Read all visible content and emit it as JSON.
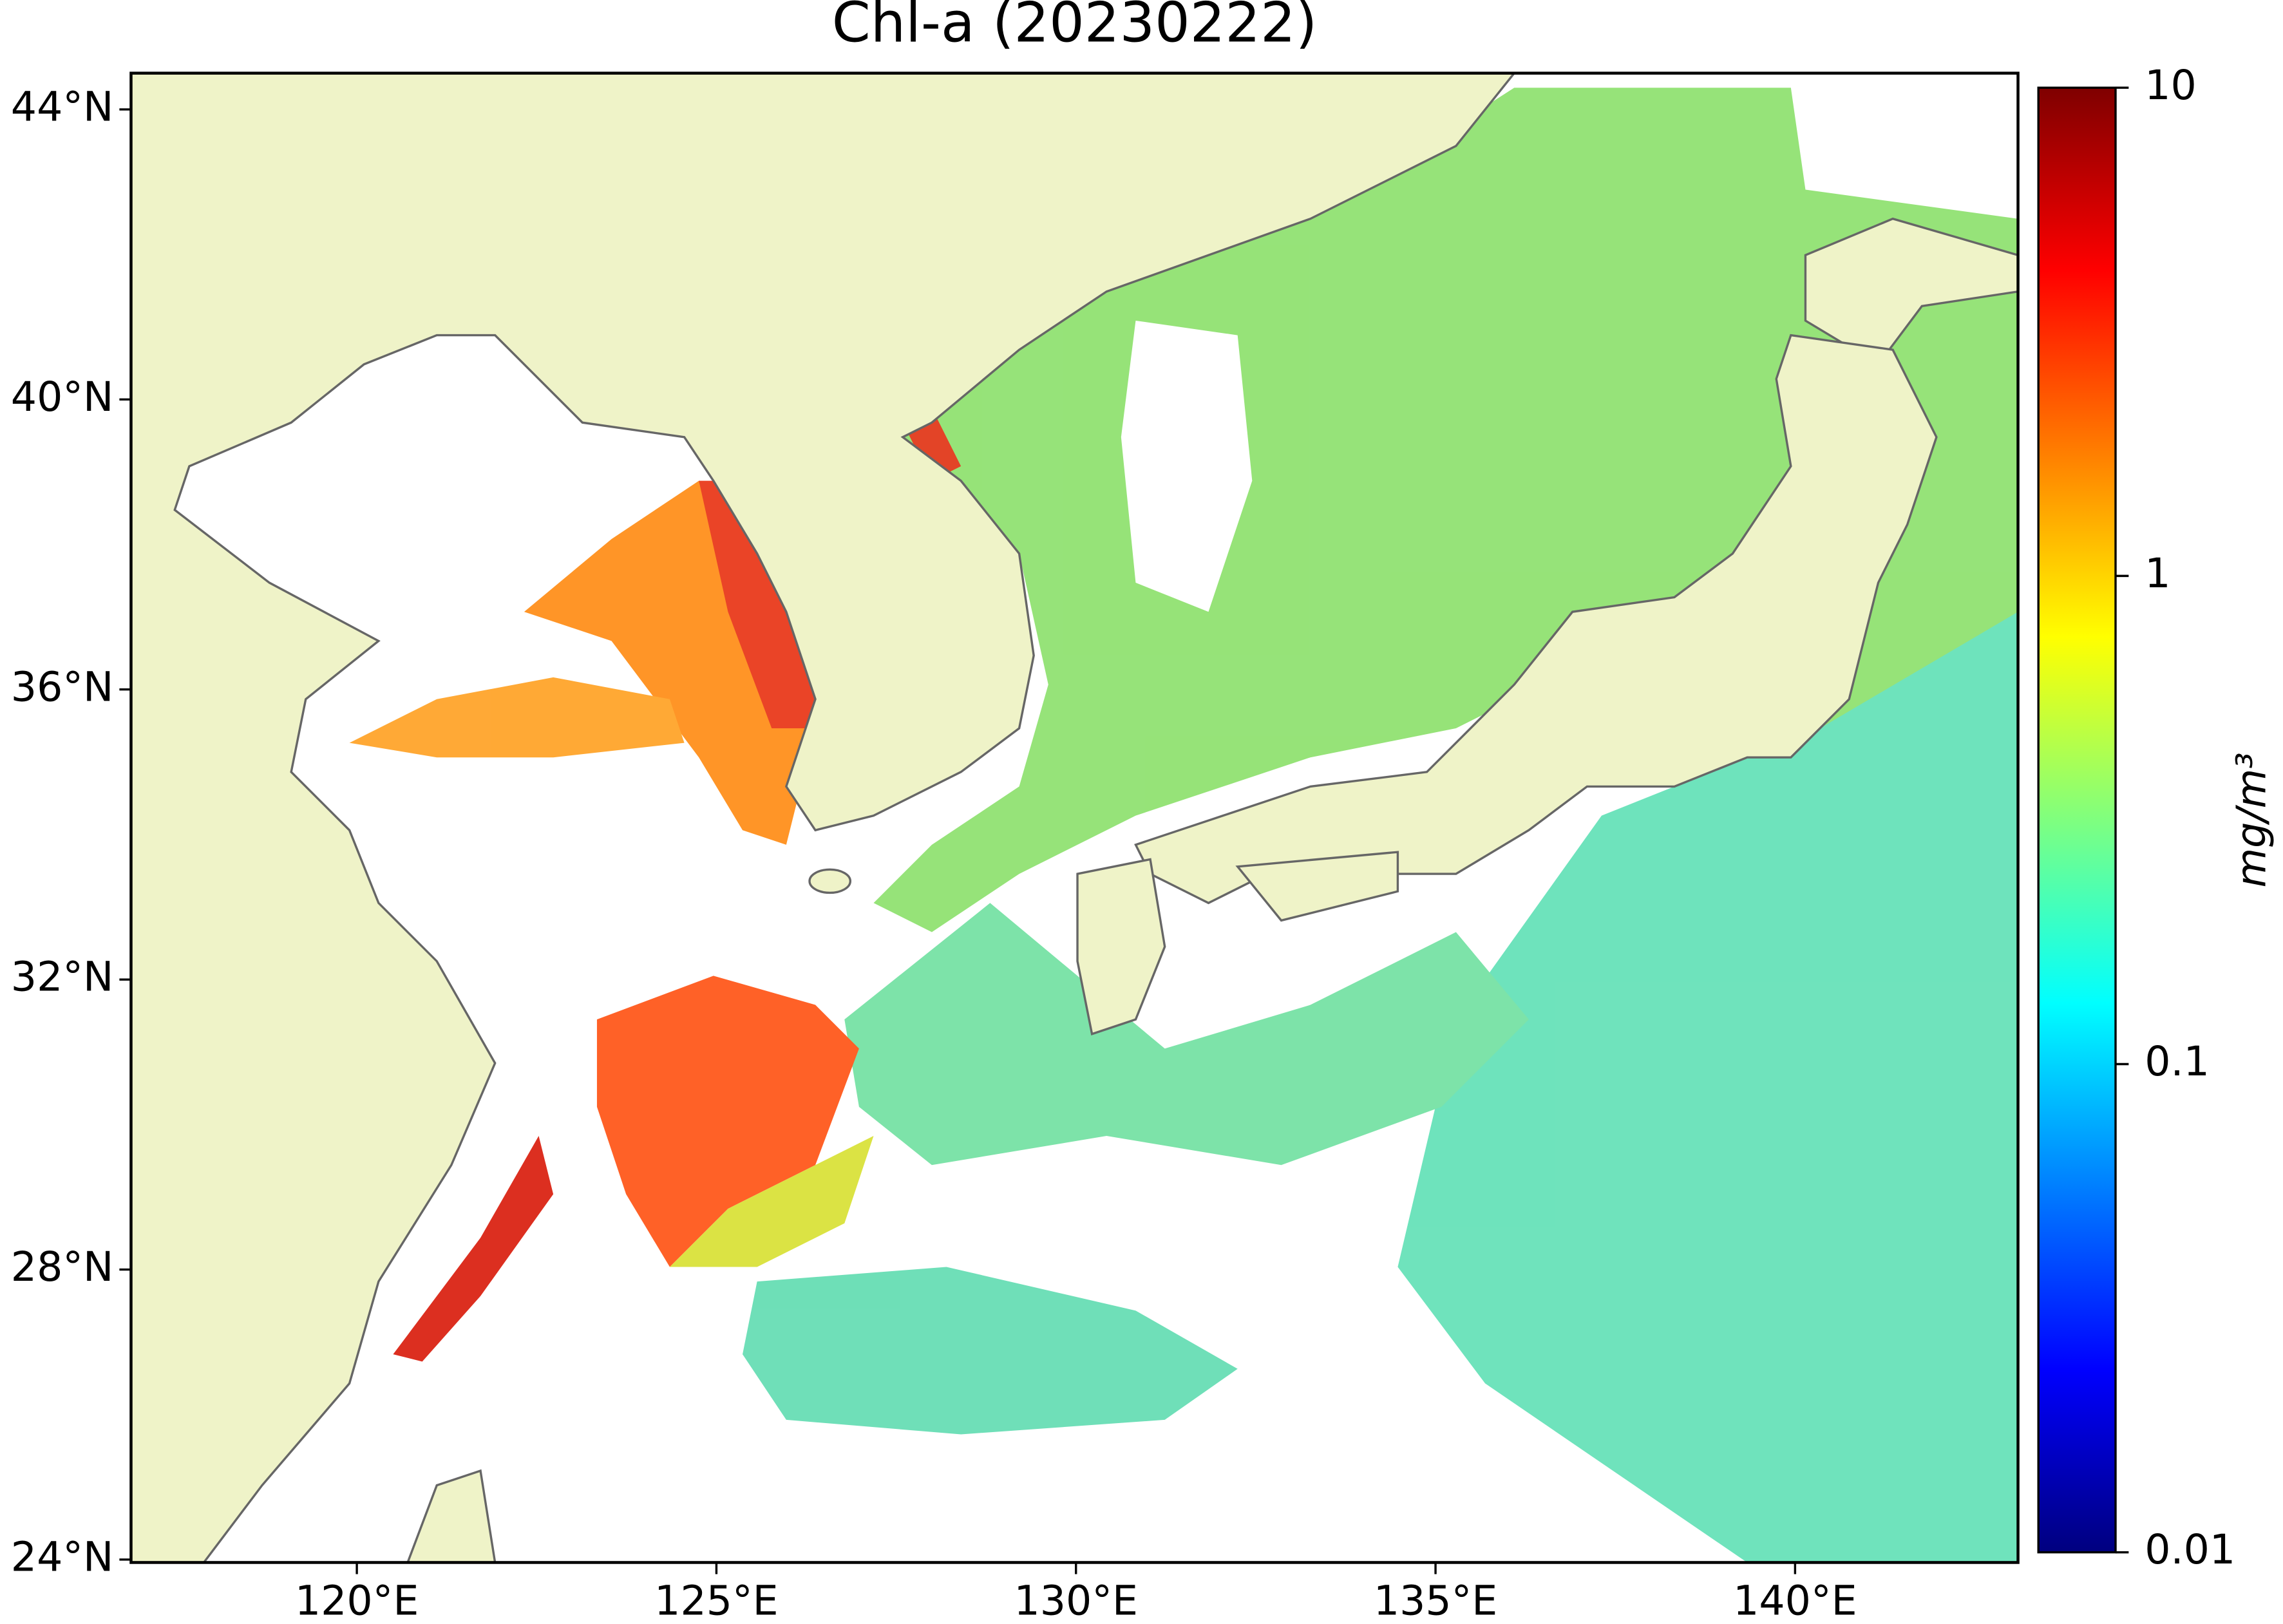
{
  "map": {
    "title": "Chl-a (20230222)",
    "xlim": [
      116.86,
      143.1
    ],
    "ylim": [
      23.96,
      44.5
    ],
    "xticks": [
      {
        "value": 120,
        "label": "120°E"
      },
      {
        "value": 125,
        "label": "125°E"
      },
      {
        "value": 130,
        "label": "130°E"
      },
      {
        "value": 135,
        "label": "135°E"
      },
      {
        "value": 140,
        "label": "140°E"
      }
    ],
    "yticks": [
      {
        "value": 24,
        "label": "24°N"
      },
      {
        "value": 28,
        "label": "28°N"
      },
      {
        "value": 32,
        "label": "32°N"
      },
      {
        "value": 36,
        "label": "36°N"
      },
      {
        "value": 40,
        "label": "40°N"
      },
      {
        "value": 44,
        "label": "44°N"
      }
    ]
  },
  "colorbar": {
    "label": "mg/m³",
    "scale": "log",
    "lim": [
      0.01,
      10
    ],
    "ticks": [
      0.01,
      0.1,
      1,
      10
    ],
    "colormap": "jet"
  }
}
